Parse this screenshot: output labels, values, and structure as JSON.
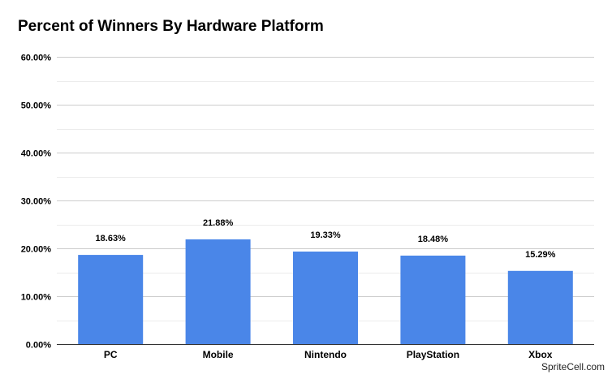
{
  "title": "Percent of Winners By Hardware Platform",
  "watermark": "SpriteCell.com",
  "colors": {
    "bar": "#4a86e8",
    "gridline": "#cccccc",
    "minor_gridline": "#ececec",
    "text": "#000000"
  },
  "chart_data": {
    "type": "bar",
    "title": "Percent of Winners By Hardware Platform",
    "xlabel": "",
    "ylabel": "",
    "categories": [
      "PC",
      "Mobile",
      "Nintendo",
      "PlayStation",
      "Xbox"
    ],
    "values": [
      18.63,
      21.88,
      19.33,
      18.48,
      15.29
    ],
    "data_labels": [
      "18.63%",
      "21.88%",
      "19.33%",
      "18.48%",
      "15.29%"
    ],
    "ylim": [
      0,
      60
    ],
    "yticks": [
      0,
      10,
      20,
      30,
      40,
      50,
      60
    ],
    "ytick_labels": [
      "0.00%",
      "10.00%",
      "20.00%",
      "30.00%",
      "40.00%",
      "50.00%",
      "60.00%"
    ],
    "grid": true,
    "legend": "none"
  }
}
